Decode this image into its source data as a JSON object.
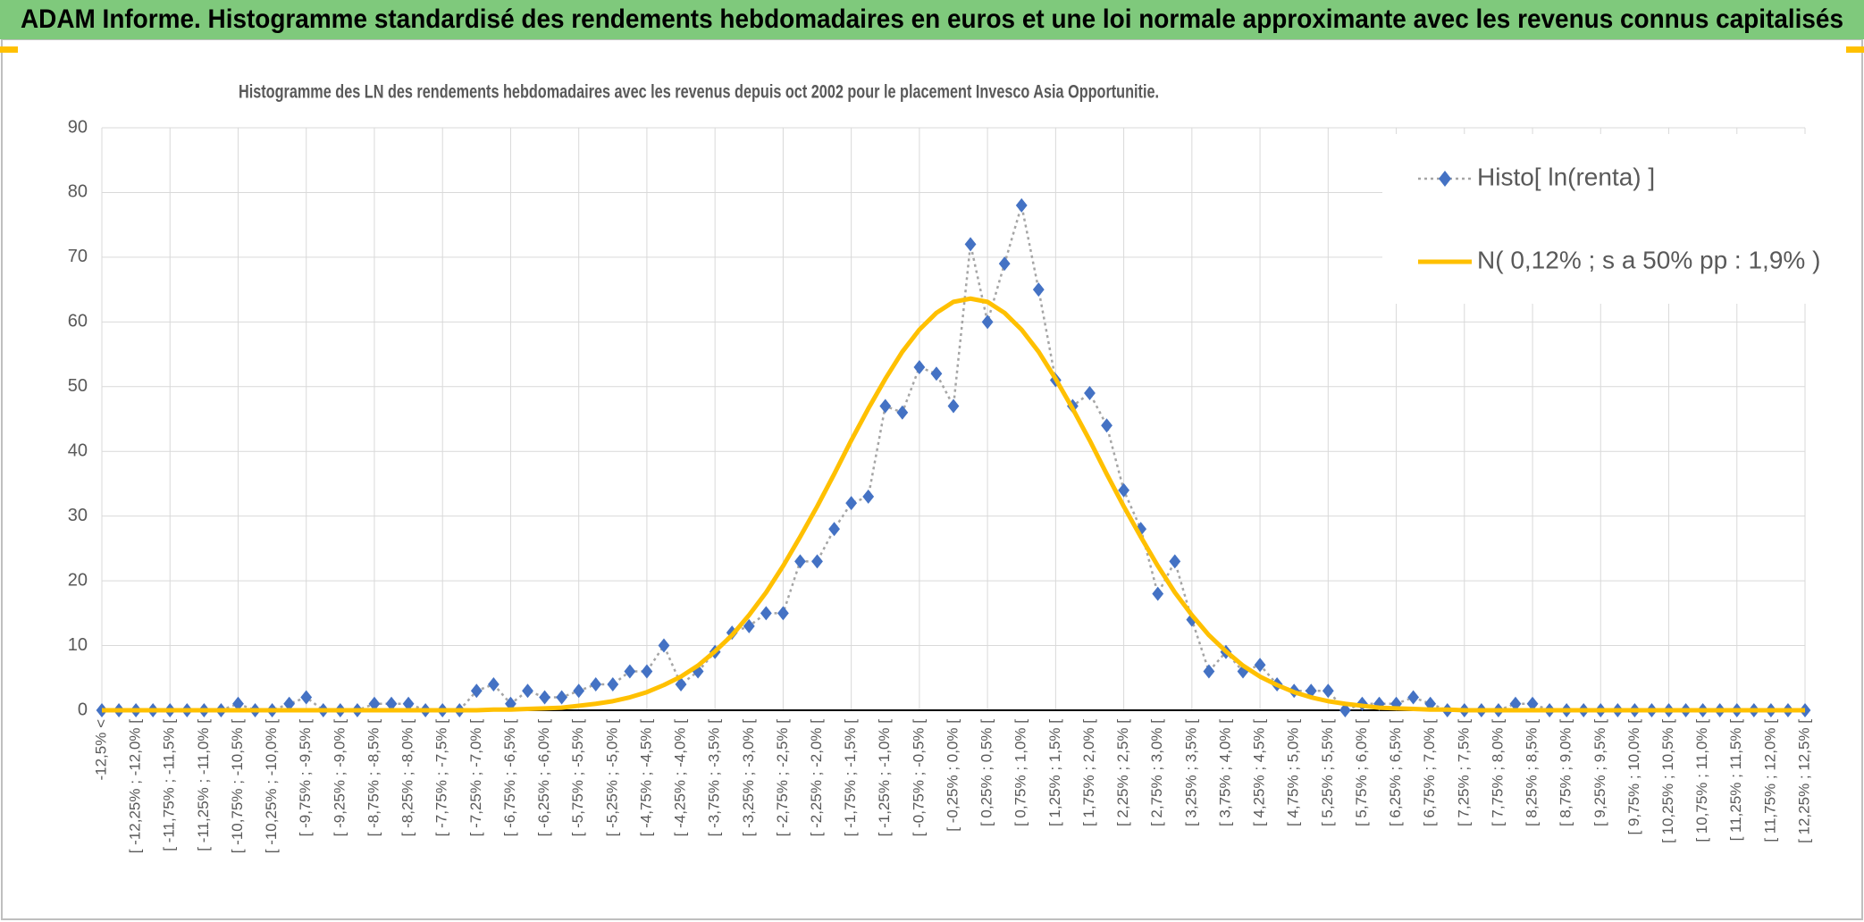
{
  "header": {
    "title": "ADAM Informe. Histogramme standardisé des rendements hebdomadaires en euros et une loi normale approximante avec les revenus connus capitalisés"
  },
  "chart_data": {
    "type": "line",
    "title": "Histogramme des LN des rendements hebdomadaires avec les revenus depuis oct 2002 pour le placement Invesco Asia Opportunitie.",
    "categories": [
      "-12,5% <",
      null,
      "[ -12,25% ; -12,0% [",
      null,
      "[ -11,75% ; -11,5% [",
      null,
      "[ -11,25% ; -11,0% [",
      null,
      "[ -10,75% ; -10,5% [",
      null,
      "[ -10,25% ; -10,0% [",
      null,
      "[ -9,75% ; -9,5% [",
      null,
      "[ -9,25% ; -9,0% [",
      null,
      "[ -8,75% ; -8,5% [",
      null,
      "[ -8,25% ; -8,0% [",
      null,
      "[ -7,75% ; -7,5% [",
      null,
      "[ -7,25% ; -7,0% [",
      null,
      "[ -6,75% ; -6,5% [",
      null,
      "[ -6,25% ; -6,0% [",
      null,
      "[ -5,75% ; -5,5% [",
      null,
      "[ -5,25% ; -5,0% [",
      null,
      "[ -4,75% ; -4,5% [",
      null,
      "[ -4,25% ; -4,0% [",
      null,
      "[ -3,75% ; -3,5% [",
      null,
      "[ -3,25% ; -3,0% [",
      null,
      "[ -2,75% ; -2,5% [",
      null,
      "[ -2,25% ; -2,0% [",
      null,
      "[ -1,75% ; -1,5% [",
      null,
      "[ -1,25% ; -1,0% [",
      null,
      "[ -0,75% ; -0,5% [",
      null,
      "[ -0,25% ; 0,0% [",
      null,
      "[ 0,25% ; 0,5% [",
      null,
      "[ 0,75% ; 1,0% [",
      null,
      "[ 1,25% ; 1,5% [",
      null,
      "[ 1,75% ; 2,0% [",
      null,
      "[ 2,25% ; 2,5% [",
      null,
      "[ 2,75% ; 3,0% [",
      null,
      "[ 3,25% ; 3,5% [",
      null,
      "[ 3,75% ; 4,0% [",
      null,
      "[ 4,25% ; 4,5% [",
      null,
      "[ 4,75% ; 5,0% [",
      null,
      "[ 5,25% ; 5,5% [",
      null,
      "[ 5,75% ; 6,0% [",
      null,
      "[ 6,25% ; 6,5% [",
      null,
      "[ 6,75% ; 7,0% [",
      null,
      "[ 7,25% ; 7,5% [",
      null,
      "[ 7,75% ; 8,0% [",
      null,
      "[ 8,25% ; 8,5% [",
      null,
      "[ 8,75% ; 9,0% [",
      null,
      "[ 9,25% ; 9,5% [",
      null,
      "[ 9,75% ; 10,0% [",
      null,
      "[ 10,25% ; 10,5% [",
      null,
      "[ 10,75% ; 11,0% [",
      null,
      "[ 11,25% ; 11,5% [",
      null,
      "[ 11,75% ; 12,0% [",
      null,
      "[ 12,25% ; 12,5% ["
    ],
    "series": [
      {
        "name": "Histo[ ln(renta) ]",
        "color": "#4472c4",
        "line_color": "#a5a5a5",
        "line_style": "dotted",
        "marker": "diamond",
        "values": [
          0,
          0,
          0,
          0,
          0,
          0,
          0,
          0,
          1,
          0,
          0,
          1,
          2,
          0,
          0,
          0,
          1,
          1,
          1,
          0,
          0,
          0,
          3,
          4,
          1,
          3,
          2,
          2,
          3,
          4,
          4,
          6,
          6,
          10,
          4,
          6,
          9,
          12,
          13,
          15,
          15,
          23,
          23,
          28,
          32,
          33,
          47,
          46,
          53,
          52,
          47,
          72,
          60,
          69,
          78,
          65,
          51,
          47,
          49,
          44,
          34,
          28,
          18,
          23,
          14,
          6,
          9,
          6,
          7,
          4,
          3,
          3,
          3,
          0,
          1,
          1,
          1,
          2,
          1,
          0,
          0,
          0,
          0,
          1,
          1,
          0,
          0,
          0,
          0,
          0,
          0,
          0,
          0,
          0,
          0,
          0,
          0,
          0,
          0,
          0,
          0
        ]
      },
      {
        "name": "N( 0,12% ; s a 50% pp : 1,9% )",
        "color": "#ffc000",
        "line_style": "solid",
        "values": [
          0,
          0,
          0,
          0,
          0,
          0,
          0,
          0,
          0,
          0,
          0,
          0,
          0,
          0,
          0,
          0,
          0,
          0,
          0,
          0,
          0,
          0,
          0,
          0.1,
          0.1,
          0.2,
          0.3,
          0.4,
          0.7,
          1,
          1.4,
          2,
          2.8,
          3.9,
          5.2,
          6.9,
          9.1,
          11.6,
          14.7,
          18.2,
          22.3,
          26.8,
          31.5,
          36.5,
          41.7,
          46.6,
          51.2,
          55.4,
          58.8,
          61.4,
          63.1,
          63.6,
          63.1,
          61.4,
          58.8,
          55.4,
          51.2,
          46.6,
          41.7,
          36.5,
          31.5,
          26.8,
          22.3,
          18.2,
          14.7,
          11.6,
          9.1,
          6.9,
          5.2,
          3.9,
          2.8,
          2,
          1.4,
          1,
          0.7,
          0.4,
          0.3,
          0.2,
          0.1,
          0.1,
          0,
          0,
          0,
          0,
          0,
          0,
          0,
          0,
          0,
          0,
          0,
          0,
          0,
          0,
          0,
          0,
          0,
          0,
          0,
          0,
          0
        ]
      }
    ],
    "ylim": [
      0,
      90
    ],
    "yticks": [
      0,
      10,
      20,
      30,
      40,
      50,
      60,
      70,
      80,
      90
    ],
    "grid": true,
    "legend": "top-right"
  }
}
